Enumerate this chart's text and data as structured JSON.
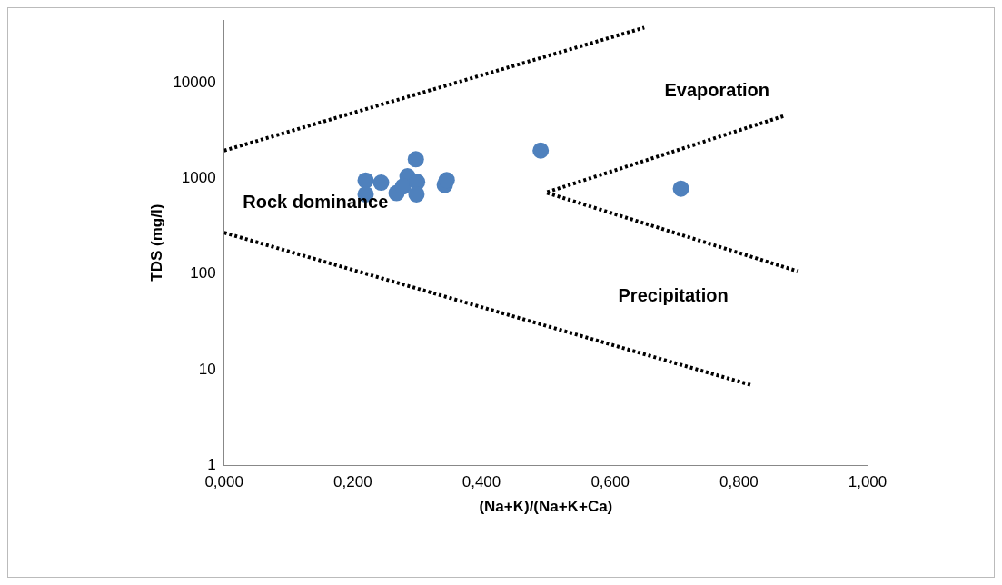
{
  "chart_data": {
    "type": "scatter",
    "xlabel": "(Na+K)/(Na+K+Ca)",
    "ylabel": "TDS (mg/l)",
    "log": "y",
    "grid": false,
    "legend": false,
    "marker": "circle",
    "xlim": [
      0,
      1
    ],
    "xticks": [
      {
        "value": 0,
        "label": "0,000"
      },
      {
        "value": 0.2,
        "label": "0,200"
      },
      {
        "value": 0.4,
        "label": "0,400"
      },
      {
        "value": 0.6,
        "label": "0,600"
      },
      {
        "value": 0.8,
        "label": "0,800"
      },
      {
        "value": 1,
        "label": "1,000"
      }
    ],
    "ylim": [
      1,
      45000
    ],
    "yticks": [
      1,
      10,
      100,
      1000,
      10000
    ],
    "series": [
      {
        "type": "scatter",
        "color": "#4f81bd",
        "x": [
          0.22,
          0.22,
          0.244,
          0.268,
          0.285,
          0.278,
          0.298,
          0.3,
          0.299,
          0.343,
          0.346,
          0.492,
          0.71
        ],
        "values": [
          950,
          680,
          900,
          700,
          1050,
          820,
          1580,
          915,
          680,
          850,
          960,
          1950,
          780
        ]
      },
      {
        "type": "line",
        "color": "#000000",
        "line_style": "dotted",
        "marker": "none",
        "x": [
          0,
          0.653
        ],
        "values": [
          1950,
          37600
        ]
      },
      {
        "type": "line",
        "color": "#000000",
        "line_style": "dotted",
        "marker": "none",
        "x": [
          0.869,
          0.5,
          0.891
        ],
        "values": [
          4470,
          710,
          107
        ]
      },
      {
        "type": "line",
        "color": "#000000",
        "line_style": "dotted",
        "marker": "none",
        "x": [
          0,
          0.819
        ],
        "values": [
          270,
          6.9
        ]
      }
    ],
    "annotations": [
      "Evaporation",
      "Rock dominance",
      "Precipitation"
    ]
  }
}
